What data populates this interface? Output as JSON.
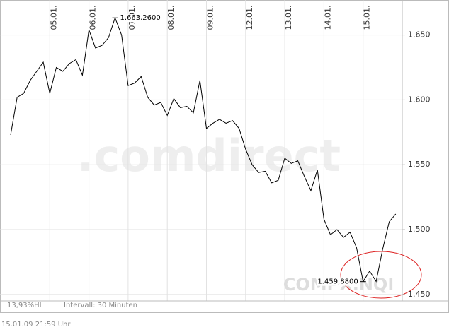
{
  "chart_data": {
    "type": "line",
    "categories": [
      null,
      null,
      null,
      null,
      null,
      null,
      "05.01.",
      null,
      null,
      null,
      null,
      null,
      "06.01.",
      null,
      null,
      null,
      null,
      null,
      "07.01.",
      null,
      null,
      null,
      null,
      null,
      "08.01.",
      null,
      null,
      null,
      null,
      null,
      "09.01.",
      null,
      null,
      null,
      null,
      null,
      "12.01.",
      null,
      null,
      null,
      null,
      null,
      "13.01.",
      null,
      null,
      null,
      null,
      null,
      "14.01.",
      null,
      null,
      null,
      null,
      null,
      "15.01.",
      null,
      null,
      null,
      null,
      null
    ],
    "series": [
      {
        "name": "COMPX.NQI",
        "color": "#000000",
        "values": [
          1.573,
          1.602,
          1.605,
          1.615,
          1.622,
          1.629,
          1.605,
          1.625,
          1.622,
          1.628,
          1.631,
          1.619,
          1.654,
          1.64,
          1.642,
          1.648,
          1.66326,
          1.65,
          1.611,
          1.613,
          1.618,
          1.602,
          1.596,
          1.598,
          1.588,
          1.601,
          1.594,
          1.595,
          1.59,
          1.615,
          1.578,
          1.582,
          1.585,
          1.582,
          1.584,
          1.578,
          1.562,
          1.55,
          1.544,
          1.545,
          1.536,
          1.538,
          1.555,
          1.551,
          1.553,
          1.541,
          1.53,
          1.546,
          1.508,
          1.496,
          1.5,
          1.494,
          1.498,
          1.486,
          1.45988,
          1.468,
          1.46,
          1.485,
          1.506,
          1.512
        ]
      }
    ],
    "ylim": [
      1.445,
      1.677
    ],
    "yticks": [
      {
        "value": 1.45,
        "label": "1.450"
      },
      {
        "value": 1.5,
        "label": "1.500"
      },
      {
        "value": 1.55,
        "label": "1.550"
      },
      {
        "value": 1.6,
        "label": "1.600"
      },
      {
        "value": 1.65,
        "label": "1.650"
      }
    ],
    "grid": true,
    "annotations": [
      {
        "label": "1.663,2600",
        "value": 1.66326
      },
      {
        "label": "1.459,8800",
        "value": 1.45988
      }
    ],
    "watermark": ".comdirect",
    "footer_left": "13,93%HL",
    "footer_interval": "Intervall: 30 Minuten",
    "timestamp": "15.01.09  21:59 Uhr"
  }
}
